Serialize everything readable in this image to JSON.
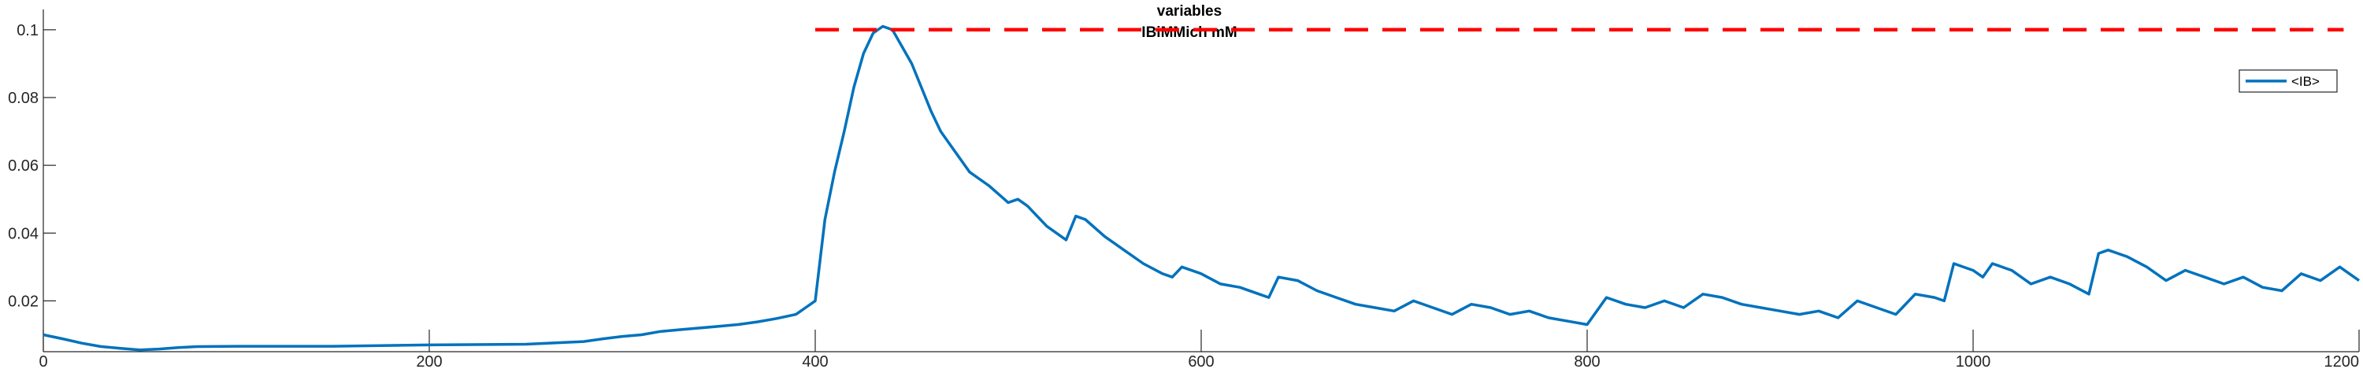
{
  "chart_data": {
    "type": "line",
    "title": [
      "variables",
      "IBiMMich mM"
    ],
    "xlabel": "",
    "ylabel": "",
    "xlim": [
      0,
      1200
    ],
    "ylim": [
      0.005,
      0.106
    ],
    "xticks": [
      0,
      200,
      400,
      600,
      800,
      1000,
      1200
    ],
    "yticks": [
      0.02,
      0.04,
      0.06,
      0.08,
      0.1
    ],
    "xtick_labels": [
      "0",
      "200",
      "400",
      "600",
      "800",
      "1000",
      "1200"
    ],
    "ytick_labels": [
      "0.02",
      "0.04",
      "0.06",
      "0.08",
      "0.1"
    ],
    "grid": false,
    "legend_position": "top-right",
    "series": [
      {
        "name": "<IB>",
        "color": "#0072BD",
        "style": "solid",
        "x": [
          0,
          10,
          20,
          30,
          40,
          50,
          60,
          70,
          80,
          100,
          150,
          200,
          250,
          280,
          290,
          300,
          310,
          320,
          330,
          340,
          350,
          360,
          370,
          380,
          390,
          395,
          400,
          405,
          410,
          415,
          420,
          425,
          430,
          435,
          440,
          445,
          450,
          455,
          460,
          465,
          470,
          480,
          490,
          500,
          505,
          510,
          520,
          530,
          535,
          540,
          550,
          560,
          570,
          580,
          585,
          590,
          600,
          610,
          620,
          630,
          635,
          640,
          650,
          660,
          670,
          680,
          690,
          700,
          710,
          720,
          730,
          740,
          750,
          760,
          770,
          780,
          790,
          800,
          810,
          820,
          830,
          840,
          850,
          860,
          870,
          880,
          890,
          900,
          910,
          920,
          930,
          940,
          950,
          960,
          970,
          980,
          985,
          990,
          1000,
          1005,
          1010,
          1020,
          1030,
          1040,
          1050,
          1060,
          1065,
          1070,
          1080,
          1090,
          1100,
          1110,
          1120,
          1130,
          1140,
          1150,
          1160,
          1170,
          1180,
          1190,
          1200
        ],
        "values": [
          0.01,
          0.0088,
          0.0075,
          0.0065,
          0.006,
          0.0055,
          0.0058,
          0.0062,
          0.0065,
          0.0066,
          0.0066,
          0.007,
          0.0072,
          0.008,
          0.0088,
          0.0095,
          0.01,
          0.011,
          0.0115,
          0.012,
          0.0125,
          0.013,
          0.0138,
          0.0148,
          0.016,
          0.018,
          0.02,
          0.044,
          0.058,
          0.07,
          0.083,
          0.093,
          0.099,
          0.101,
          0.1,
          0.095,
          0.09,
          0.083,
          0.076,
          0.07,
          0.066,
          0.058,
          0.054,
          0.049,
          0.05,
          0.048,
          0.042,
          0.038,
          0.045,
          0.044,
          0.039,
          0.035,
          0.031,
          0.028,
          0.027,
          0.03,
          0.028,
          0.025,
          0.024,
          0.022,
          0.021,
          0.027,
          0.026,
          0.023,
          0.021,
          0.019,
          0.018,
          0.017,
          0.02,
          0.018,
          0.016,
          0.019,
          0.018,
          0.016,
          0.017,
          0.015,
          0.014,
          0.013,
          0.021,
          0.019,
          0.018,
          0.02,
          0.018,
          0.022,
          0.021,
          0.019,
          0.018,
          0.017,
          0.016,
          0.017,
          0.015,
          0.02,
          0.018,
          0.016,
          0.022,
          0.021,
          0.02,
          0.031,
          0.029,
          0.027,
          0.031,
          0.029,
          0.025,
          0.027,
          0.025,
          0.022,
          0.034,
          0.035,
          0.033,
          0.03,
          0.026,
          0.029,
          0.027,
          0.025,
          0.027,
          0.024,
          0.023,
          0.028,
          0.026,
          0.03,
          0.026
        ]
      },
      {
        "color": "#FF0000",
        "style": "dashed",
        "x": [
          400,
          1192
        ],
        "values": [
          0.1,
          0.1
        ]
      }
    ]
  }
}
